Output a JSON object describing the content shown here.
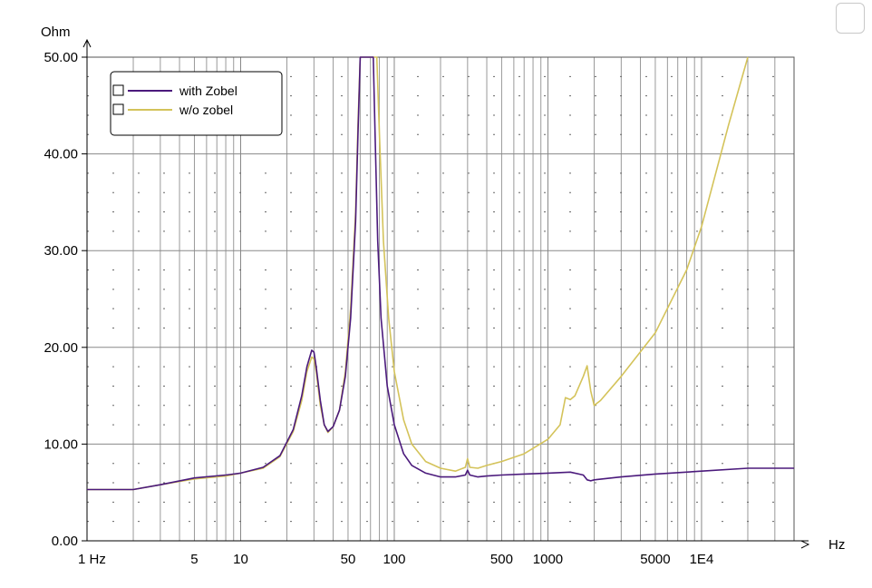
{
  "chart_data": {
    "type": "line",
    "xscale": "log",
    "xlim": [
      1,
      40000
    ],
    "ylim": [
      0,
      50
    ],
    "ylabel": "Ohm",
    "xlabel": "Hz",
    "grid": true,
    "legend_position": "top-left",
    "yticks": [
      "0.00",
      "10.00",
      "20.00",
      "30.00",
      "40.00",
      "50.00"
    ],
    "xticks": [
      {
        "value": 1,
        "label": "1 Hz"
      },
      {
        "value": 5,
        "label": "5"
      },
      {
        "value": 10,
        "label": "10"
      },
      {
        "value": 50,
        "label": "50"
      },
      {
        "value": 100,
        "label": "100"
      },
      {
        "value": 500,
        "label": "500"
      },
      {
        "value": 1000,
        "label": "1000"
      },
      {
        "value": 5000,
        "label": "5000"
      },
      {
        "value": 10000,
        "label": "1E4"
      }
    ],
    "series": [
      {
        "name": "with Zobel",
        "color": "#4b1a7c",
        "points": [
          [
            1,
            5.3
          ],
          [
            2,
            5.3
          ],
          [
            3,
            5.8
          ],
          [
            5,
            6.5
          ],
          [
            8,
            6.8
          ],
          [
            10,
            7.0
          ],
          [
            14,
            7.6
          ],
          [
            18,
            8.8
          ],
          [
            22,
            11.5
          ],
          [
            25,
            15.0
          ],
          [
            27,
            18.0
          ],
          [
            29,
            19.7
          ],
          [
            30,
            19.5
          ],
          [
            31,
            18.0
          ],
          [
            33,
            14.5
          ],
          [
            35,
            12.0
          ],
          [
            37,
            11.3
          ],
          [
            40,
            11.8
          ],
          [
            44,
            13.5
          ],
          [
            48,
            17.0
          ],
          [
            52,
            23.0
          ],
          [
            56,
            33.0
          ],
          [
            58,
            42.0
          ],
          [
            60,
            50.0
          ],
          [
            73,
            50.0
          ],
          [
            75,
            42.0
          ],
          [
            78,
            31.0
          ],
          [
            82,
            23.0
          ],
          [
            90,
            16.0
          ],
          [
            100,
            12.0
          ],
          [
            115,
            9.0
          ],
          [
            130,
            7.8
          ],
          [
            160,
            7.0
          ],
          [
            200,
            6.6
          ],
          [
            250,
            6.6
          ],
          [
            290,
            6.8
          ],
          [
            300,
            7.3
          ],
          [
            310,
            6.8
          ],
          [
            350,
            6.6
          ],
          [
            400,
            6.7
          ],
          [
            500,
            6.8
          ],
          [
            700,
            6.9
          ],
          [
            1000,
            7.0
          ],
          [
            1400,
            7.1
          ],
          [
            1700,
            6.8
          ],
          [
            1800,
            6.3
          ],
          [
            1900,
            6.2
          ],
          [
            2000,
            6.3
          ],
          [
            3000,
            6.6
          ],
          [
            5000,
            6.9
          ],
          [
            10000,
            7.2
          ],
          [
            20000,
            7.5
          ],
          [
            40000,
            7.5
          ]
        ]
      },
      {
        "name": "w/o zobel",
        "color": "#d4c35a",
        "points": [
          [
            1,
            5.3
          ],
          [
            2,
            5.3
          ],
          [
            3,
            5.8
          ],
          [
            5,
            6.4
          ],
          [
            8,
            6.7
          ],
          [
            10,
            7.0
          ],
          [
            14,
            7.5
          ],
          [
            18,
            8.7
          ],
          [
            22,
            11.3
          ],
          [
            25,
            14.5
          ],
          [
            27,
            17.5
          ],
          [
            29,
            19.0
          ],
          [
            30,
            18.8
          ],
          [
            31,
            17.5
          ],
          [
            33,
            14.0
          ],
          [
            35,
            12.0
          ],
          [
            37,
            11.2
          ],
          [
            40,
            11.8
          ],
          [
            44,
            13.5
          ],
          [
            48,
            17.5
          ],
          [
            52,
            24.0
          ],
          [
            56,
            34.0
          ],
          [
            58,
            43.0
          ],
          [
            60,
            50.0
          ],
          [
            77,
            50.0
          ],
          [
            80,
            42.0
          ],
          [
            85,
            31.0
          ],
          [
            92,
            23.0
          ],
          [
            100,
            17.5
          ],
          [
            115,
            12.5
          ],
          [
            130,
            10.0
          ],
          [
            160,
            8.2
          ],
          [
            200,
            7.5
          ],
          [
            250,
            7.2
          ],
          [
            290,
            7.6
          ],
          [
            300,
            8.5
          ],
          [
            310,
            7.6
          ],
          [
            350,
            7.5
          ],
          [
            400,
            7.8
          ],
          [
            500,
            8.2
          ],
          [
            700,
            9.0
          ],
          [
            1000,
            10.5
          ],
          [
            1200,
            12.0
          ],
          [
            1300,
            14.8
          ],
          [
            1400,
            14.6
          ],
          [
            1500,
            15.0
          ],
          [
            1700,
            17.0
          ],
          [
            1800,
            18.1
          ],
          [
            1900,
            15.5
          ],
          [
            2000,
            14.0
          ],
          [
            2200,
            14.5
          ],
          [
            3000,
            17.0
          ],
          [
            5000,
            21.5
          ],
          [
            8000,
            28.0
          ],
          [
            10000,
            32.5
          ],
          [
            15000,
            43.0
          ],
          [
            20000,
            50.0
          ]
        ]
      }
    ]
  }
}
